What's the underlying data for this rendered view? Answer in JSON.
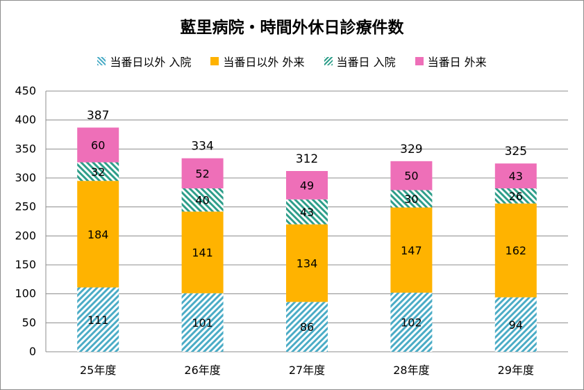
{
  "chart_data": {
    "type": "bar",
    "stacked": true,
    "title": "藍里病院・時間外休日診療件数",
    "categories": [
      "25年度",
      "26年度",
      "27年度",
      "28年度",
      "29年度"
    ],
    "series": [
      {
        "name": "当番日以外 入院",
        "values": [
          111,
          101,
          86,
          102,
          94
        ],
        "color": "#4bacc6",
        "pattern": "hatch"
      },
      {
        "name": "当番日以外 外来",
        "values": [
          184,
          141,
          134,
          147,
          162
        ],
        "color": "#ffb300",
        "pattern": "solid"
      },
      {
        "name": "当番日 入院",
        "values": [
          32,
          40,
          43,
          30,
          26
        ],
        "color": "#2e9e8a",
        "pattern": "hatch"
      },
      {
        "name": "当番日 外来",
        "values": [
          60,
          52,
          49,
          50,
          43
        ],
        "color": "#ee6fb8",
        "pattern": "solid"
      }
    ],
    "totals": [
      387,
      334,
      312,
      329,
      325
    ],
    "ylim": [
      0,
      450
    ],
    "yticks": [
      0,
      50,
      100,
      150,
      200,
      250,
      300,
      350,
      400,
      450
    ],
    "grid": true,
    "legend": "top"
  }
}
